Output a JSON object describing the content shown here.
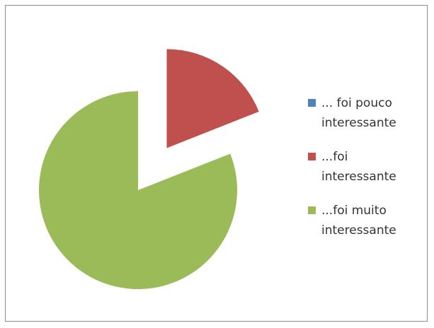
{
  "chart_data": {
    "type": "pie",
    "categories": [
      "... foi pouco interessante",
      "...foi interessante",
      "...foi muito interessante"
    ],
    "values": [
      0,
      19,
      81
    ],
    "colors": [
      "#4f81bd",
      "#c0504d",
      "#9bbb59"
    ]
  }
}
